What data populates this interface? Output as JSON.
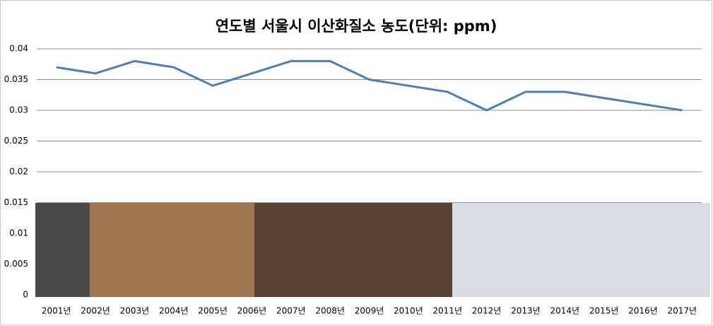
{
  "chart_data": {
    "type": "line",
    "title": "연도별 서울시 이산화질소 농도(단위: ppm)",
    "categories": [
      "2001년",
      "2002년",
      "2003년",
      "2004년",
      "2005년",
      "2006년",
      "2007년",
      "2008년",
      "2009년",
      "2010년",
      "2011년",
      "2012년",
      "2013년",
      "2014년",
      "2015년",
      "2016년",
      "2017년"
    ],
    "values": [
      0.037,
      0.036,
      0.038,
      0.037,
      0.034,
      0.036,
      0.038,
      0.038,
      0.035,
      0.034,
      0.033,
      0.03,
      0.033,
      0.033,
      0.032,
      0.031,
      0.03
    ],
    "color": "#4a7ebb",
    "ylim": [
      0,
      0.04
    ],
    "yticks": [
      0,
      0.005,
      0.01,
      0.015,
      0.02,
      0.025,
      0.03,
      0.035,
      0.04
    ],
    "grid": true
  }
}
